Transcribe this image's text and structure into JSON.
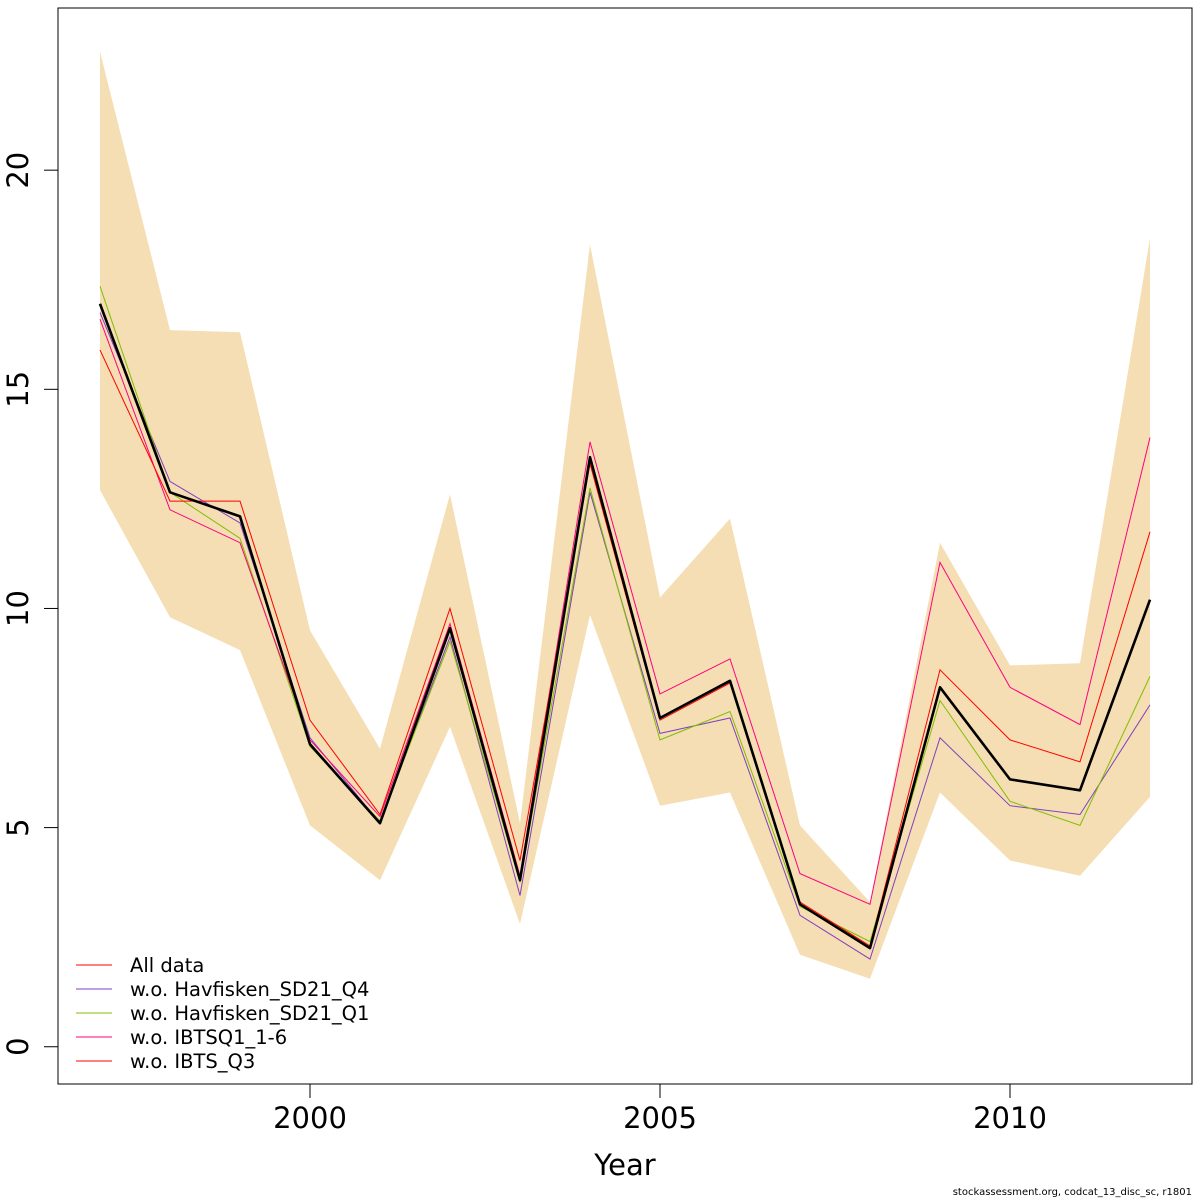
{
  "chart_data": {
    "type": "line",
    "xlabel": "Year",
    "ylabel": "",
    "xlim": [
      1996.4,
      2012.6
    ],
    "ylim": [
      -0.85,
      23.7
    ],
    "x_ticks": [
      "2000",
      "2005",
      "2010"
    ],
    "y_ticks": [
      "0",
      "5",
      "10",
      "15",
      "20"
    ],
    "grid": false,
    "legend_position": "bottom-left",
    "x": [
      1997,
      1998,
      1999,
      2000,
      2001,
      2002,
      2003,
      2004,
      2005,
      2006,
      2007,
      2008,
      2009,
      2010,
      2011,
      2012
    ],
    "confidence_band": {
      "color": "#F5DEB3",
      "lower": [
        12.7,
        9.8,
        9.05,
        5.05,
        3.8,
        7.3,
        2.8,
        9.85,
        5.5,
        5.8,
        2.1,
        1.55,
        5.8,
        4.25,
        3.9,
        5.7
      ],
      "upper": [
        22.7,
        16.35,
        16.3,
        9.5,
        6.8,
        12.6,
        5.1,
        18.3,
        10.25,
        12.05,
        5.05,
        3.3,
        11.5,
        8.7,
        8.75,
        18.45
      ]
    },
    "main_line": {
      "color": "#000000",
      "values": [
        16.95,
        12.65,
        12.1,
        6.9,
        5.1,
        9.55,
        3.8,
        13.45,
        7.5,
        8.35,
        3.25,
        2.25,
        8.2,
        6.1,
        5.85,
        10.2
      ]
    },
    "series": [
      {
        "name": "All data",
        "color": "#FF0000",
        "values": [
          16.95,
          12.65,
          12.1,
          6.9,
          5.1,
          9.55,
          3.8,
          13.45,
          7.5,
          8.35,
          3.25,
          2.25,
          8.2,
          6.1,
          5.85,
          10.2
        ]
      },
      {
        "name": "w.o. Havfisken_SD21_Q4",
        "color": "#7F3FBF",
        "values": [
          16.75,
          12.9,
          11.95,
          7.05,
          5.1,
          9.35,
          3.45,
          12.65,
          7.15,
          7.5,
          3.0,
          2.0,
          7.05,
          5.5,
          5.3,
          7.8
        ]
      },
      {
        "name": "w.o. Havfisken_SD21_Q1",
        "color": "#7FBF00",
        "values": [
          17.35,
          12.65,
          11.6,
          6.85,
          5.15,
          9.25,
          3.75,
          12.75,
          7.0,
          7.65,
          3.2,
          2.4,
          7.9,
          5.6,
          5.05,
          8.45
        ]
      },
      {
        "name": "w.o. IBTSQ1_1-6",
        "color": "#FF007F",
        "values": [
          16.6,
          12.25,
          11.5,
          7.0,
          5.25,
          9.65,
          3.9,
          13.8,
          8.05,
          8.85,
          3.95,
          3.25,
          11.05,
          8.2,
          7.35,
          13.9
        ]
      },
      {
        "name": "w.o. IBTS_Q3",
        "color": "#FF0000",
        "values": [
          15.9,
          12.45,
          12.45,
          7.45,
          5.3,
          10.0,
          4.25,
          13.3,
          7.45,
          8.3,
          3.3,
          2.3,
          8.6,
          7.0,
          6.5,
          11.75
        ]
      }
    ]
  },
  "credit_text": "stockassessment.org, codcat_13_disc_sc, r1801"
}
